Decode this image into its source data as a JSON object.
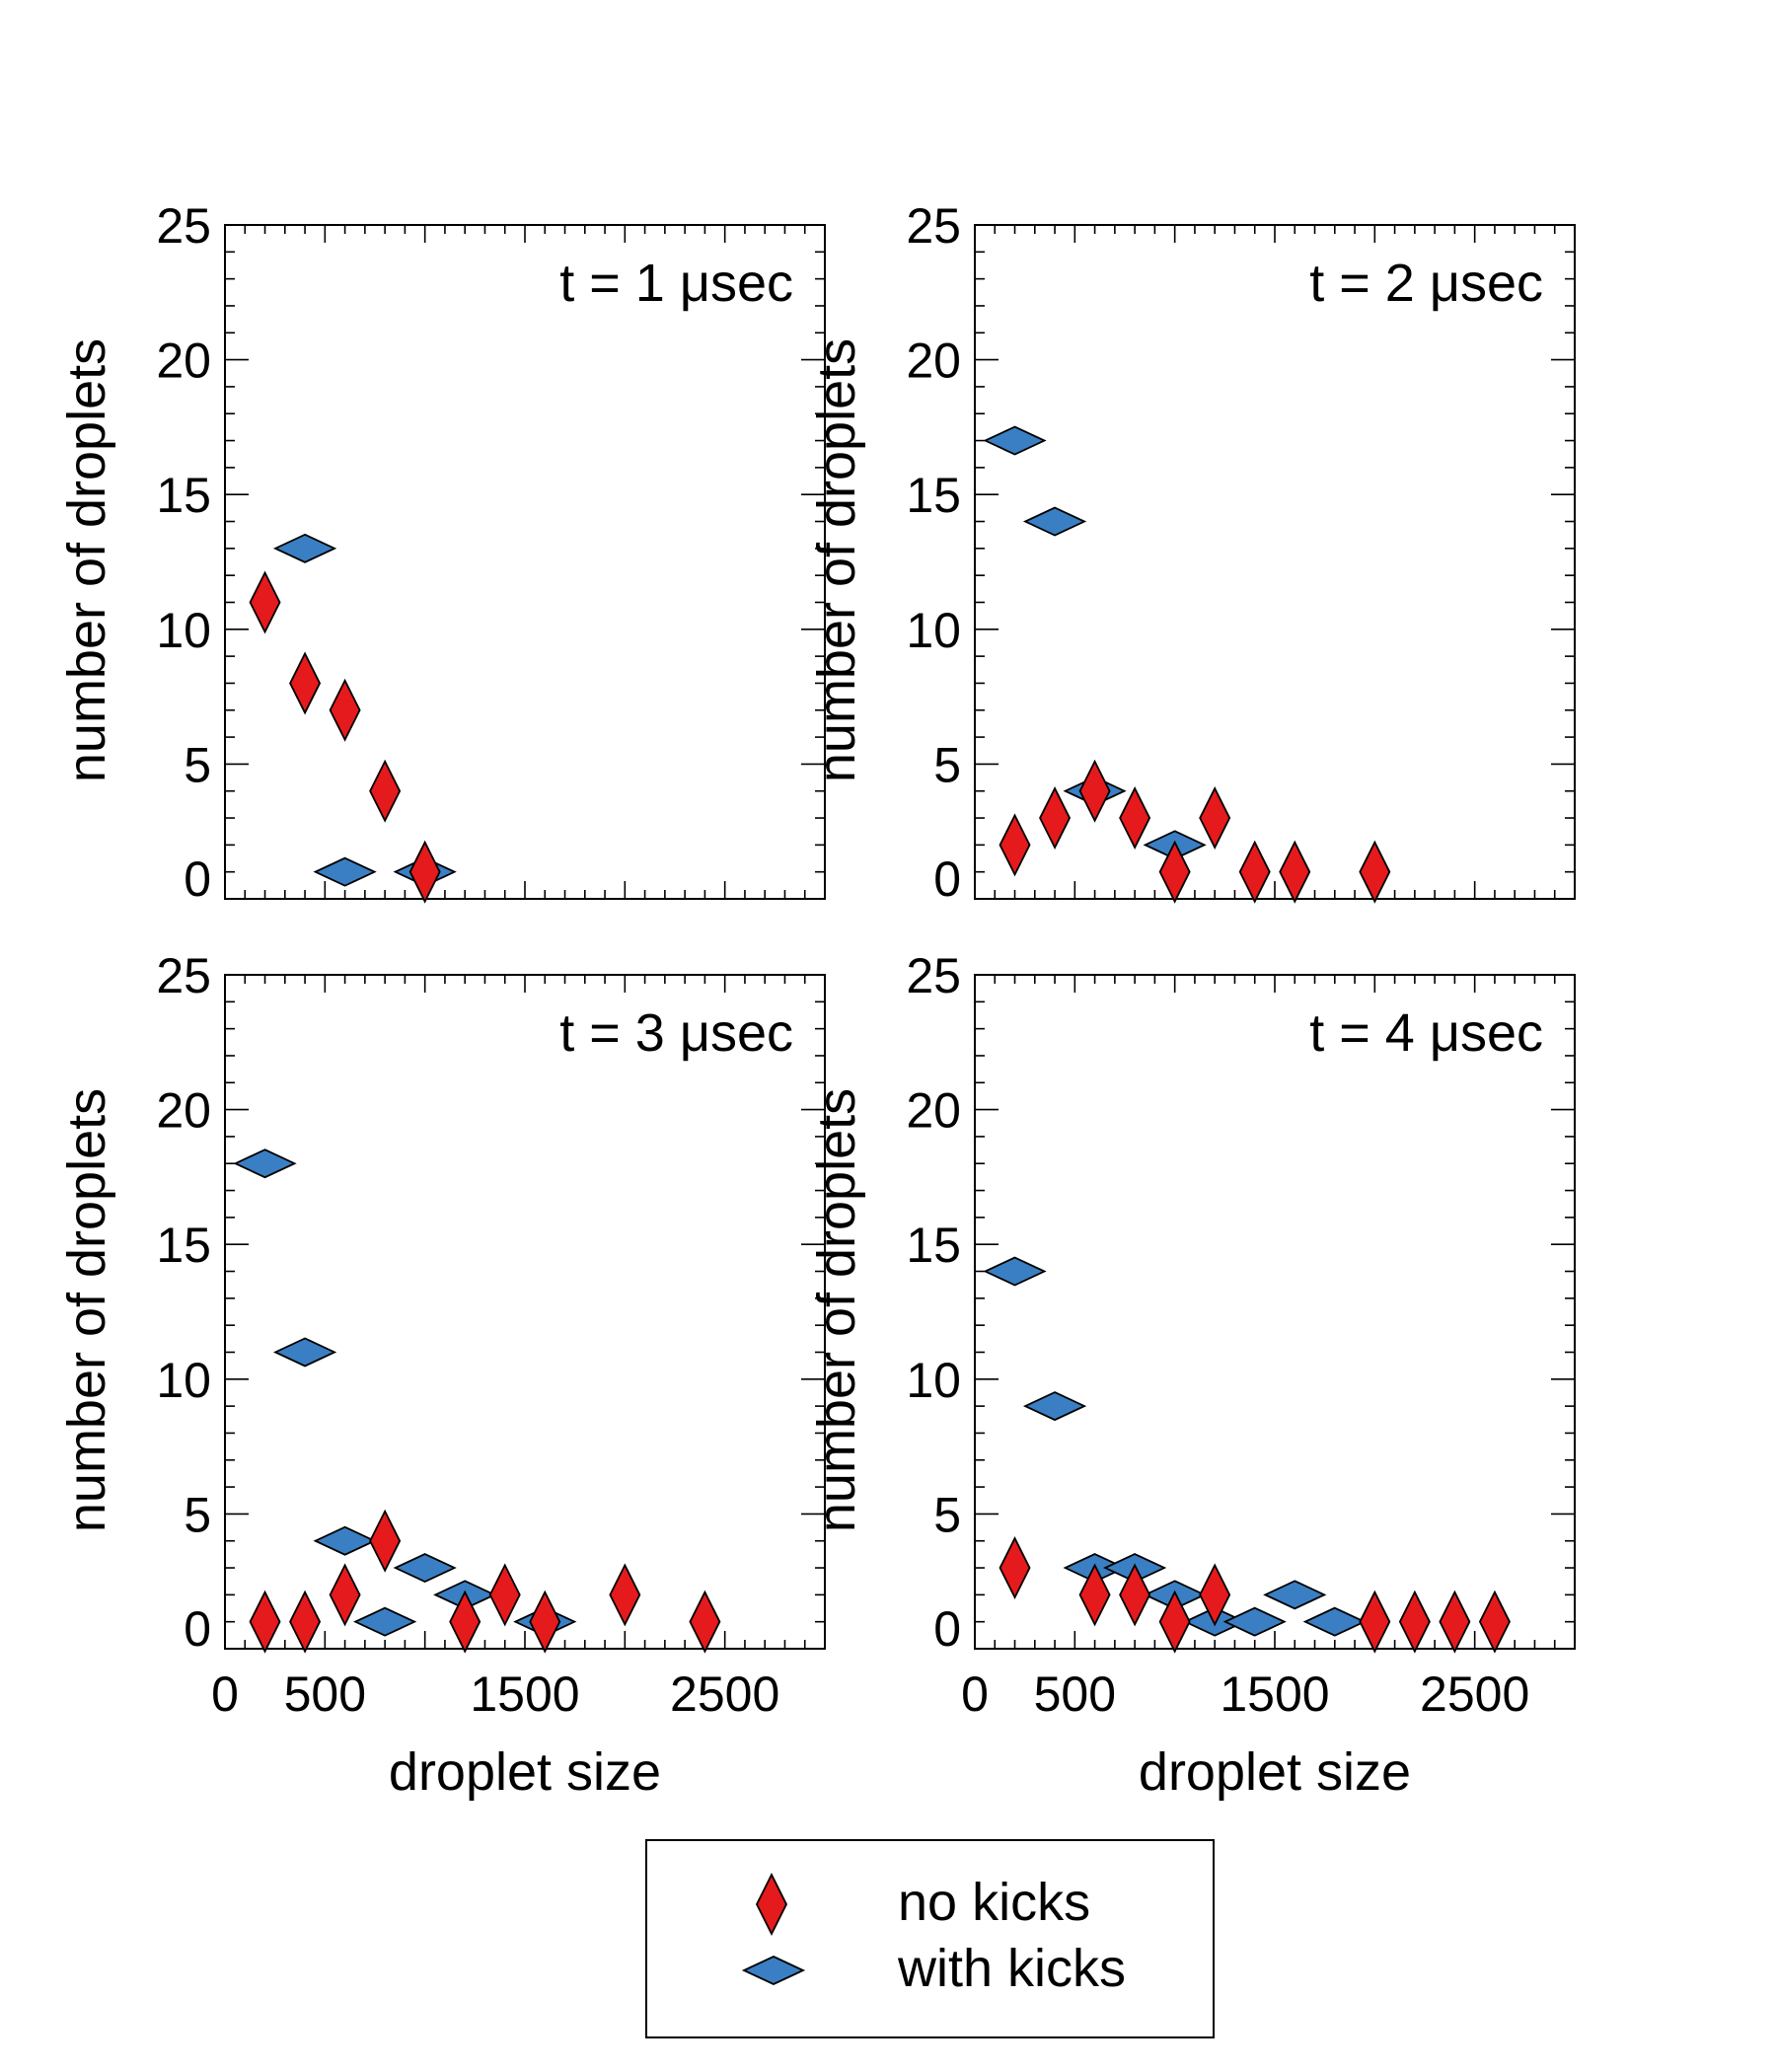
{
  "chart_data": [
    {
      "type": "scatter",
      "annotation": "t = 1 μsec",
      "xlabel": "droplet size",
      "ylabel": "number of droplets",
      "xlim": [
        0,
        3000
      ],
      "ylim": [
        0,
        25
      ],
      "xticks": [
        "0",
        "500",
        "1500",
        "2500"
      ],
      "yticks": [
        "0",
        "5",
        "10",
        "15",
        "20",
        "25"
      ],
      "series": [
        {
          "name": "no kicks",
          "points": [
            [
              200,
              11
            ],
            [
              400,
              8
            ],
            [
              600,
              7
            ],
            [
              800,
              4
            ],
            [
              1000,
              1
            ]
          ]
        },
        {
          "name": "with kicks",
          "points": [
            [
              400,
              13
            ],
            [
              600,
              1
            ],
            [
              1000,
              1
            ]
          ]
        }
      ]
    },
    {
      "type": "scatter",
      "annotation": "t = 2 μsec",
      "xlabel": "droplet size",
      "ylabel": "number of droplets",
      "xlim": [
        0,
        3000
      ],
      "ylim": [
        0,
        25
      ],
      "xticks": [
        "0",
        "500",
        "1500",
        "2500"
      ],
      "yticks": [
        "0",
        "5",
        "10",
        "15",
        "20",
        "25"
      ],
      "series": [
        {
          "name": "no kicks",
          "points": [
            [
              200,
              2
            ],
            [
              400,
              3
            ],
            [
              600,
              4
            ],
            [
              800,
              3
            ],
            [
              1000,
              1
            ],
            [
              1200,
              3
            ],
            [
              1400,
              1
            ],
            [
              1600,
              1
            ],
            [
              2000,
              1
            ]
          ]
        },
        {
          "name": "with kicks",
          "points": [
            [
              200,
              17
            ],
            [
              400,
              14
            ],
            [
              600,
              4
            ],
            [
              1000,
              2
            ]
          ]
        }
      ]
    },
    {
      "type": "scatter",
      "annotation": "t = 3 μsec",
      "xlabel": "droplet size",
      "ylabel": "number of droplets",
      "xlim": [
        0,
        3000
      ],
      "ylim": [
        0,
        25
      ],
      "xticks": [
        "0",
        "500",
        "1500",
        "2500"
      ],
      "yticks": [
        "0",
        "5",
        "10",
        "15",
        "20",
        "25"
      ],
      "series": [
        {
          "name": "no kicks",
          "points": [
            [
              200,
              1
            ],
            [
              400,
              1
            ],
            [
              600,
              2
            ],
            [
              800,
              4
            ],
            [
              1200,
              1
            ],
            [
              1400,
              2
            ],
            [
              1600,
              1
            ],
            [
              2000,
              2
            ],
            [
              2400,
              1
            ]
          ]
        },
        {
          "name": "with kicks",
          "points": [
            [
              200,
              18
            ],
            [
              400,
              11
            ],
            [
              600,
              4
            ],
            [
              800,
              1
            ],
            [
              1000,
              3
            ],
            [
              1200,
              2
            ],
            [
              1600,
              1
            ]
          ]
        }
      ]
    },
    {
      "type": "scatter",
      "annotation": "t = 4 μsec",
      "xlabel": "droplet size",
      "ylabel": "number of droplets",
      "xlim": [
        0,
        3000
      ],
      "ylim": [
        0,
        25
      ],
      "xticks": [
        "0",
        "500",
        "1500",
        "2500"
      ],
      "yticks": [
        "0",
        "5",
        "10",
        "15",
        "20",
        "25"
      ],
      "series": [
        {
          "name": "no kicks",
          "points": [
            [
              200,
              3
            ],
            [
              600,
              2
            ],
            [
              800,
              2
            ],
            [
              1000,
              1
            ],
            [
              1200,
              2
            ],
            [
              2000,
              1
            ],
            [
              2200,
              1
            ],
            [
              2400,
              1
            ],
            [
              2600,
              1
            ]
          ]
        },
        {
          "name": "with kicks",
          "points": [
            [
              200,
              14
            ],
            [
              400,
              9
            ],
            [
              600,
              3
            ],
            [
              800,
              3
            ],
            [
              1000,
              2
            ],
            [
              1200,
              1
            ],
            [
              1400,
              1
            ],
            [
              1600,
              2
            ],
            [
              1800,
              1
            ]
          ]
        }
      ]
    }
  ],
  "legend": {
    "entries": [
      {
        "label": "no kicks",
        "marker": "red-vertical-diamond"
      },
      {
        "label": "with kicks",
        "marker": "blue-horizontal-diamond"
      }
    ]
  },
  "colors": {
    "no_kicks": "#e41a1c",
    "with_kicks": "#3a7fc3",
    "marker_edge": "#000000",
    "axes": "#000000"
  }
}
